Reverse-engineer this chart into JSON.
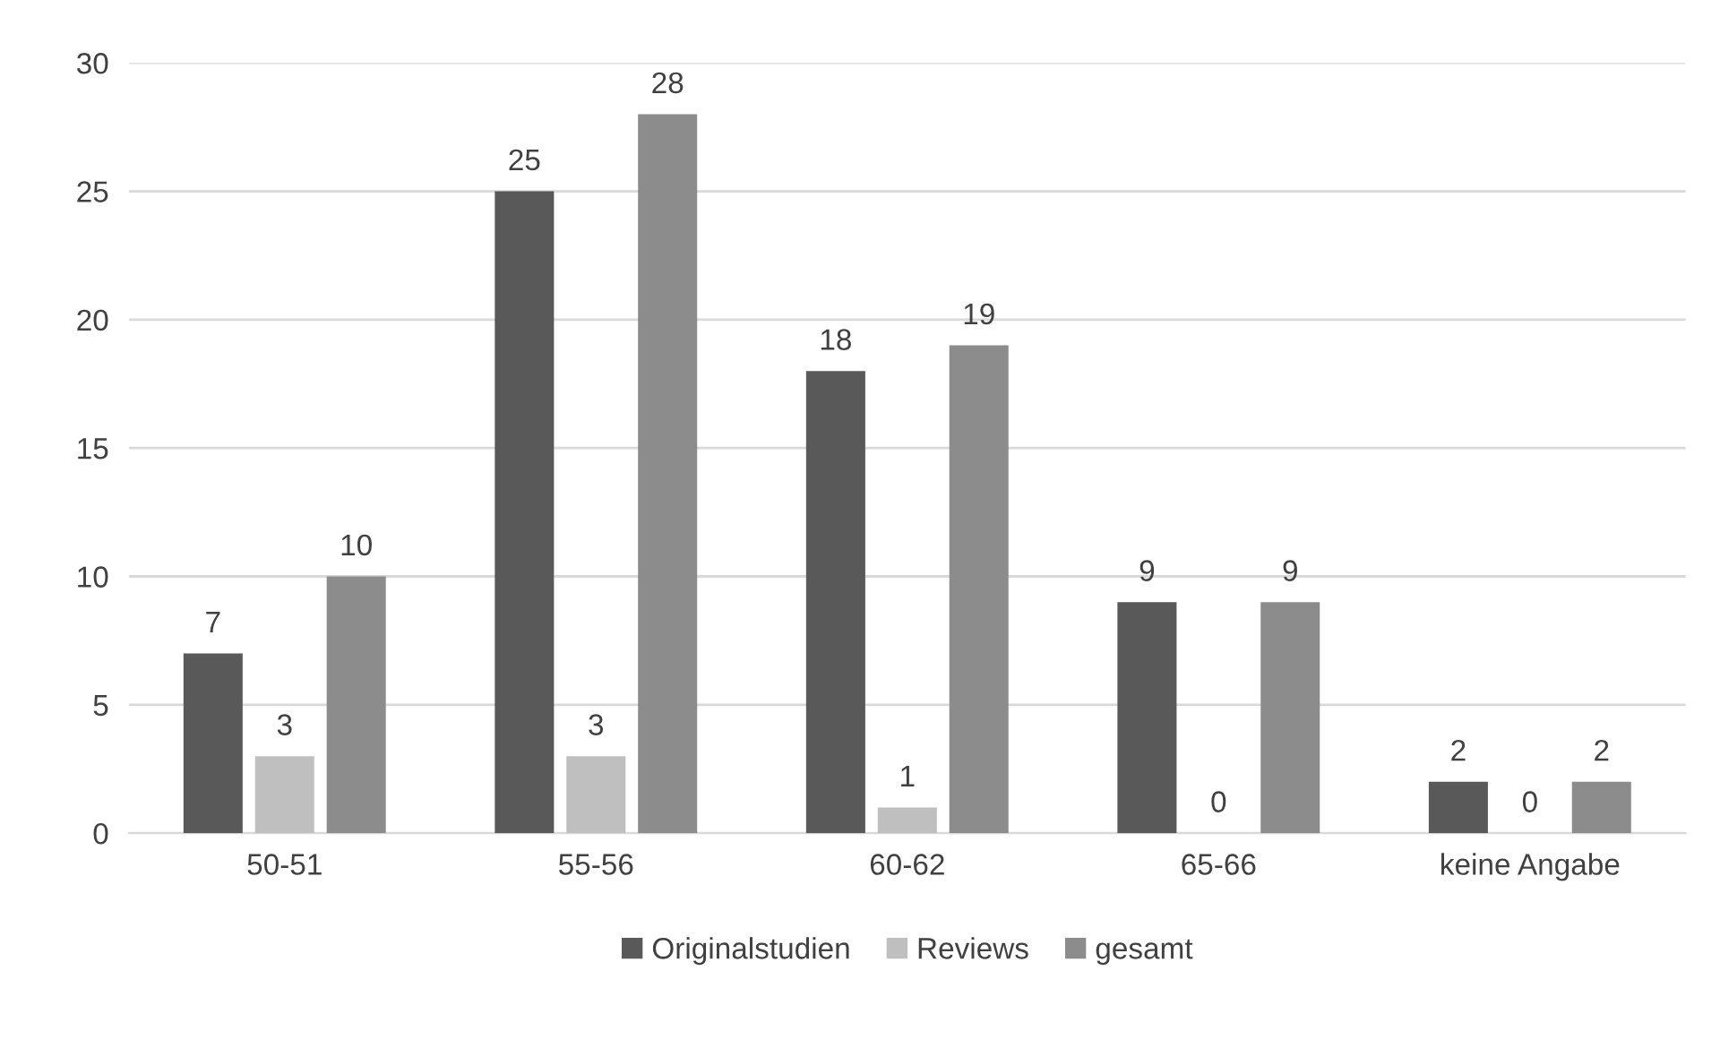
{
  "chart_data": {
    "type": "bar",
    "categories": [
      "50-51",
      "55-56",
      "60-62",
      "65-66",
      "keine Angabe"
    ],
    "series": [
      {
        "name": "Originalstudien",
        "color": "#595959",
        "values": [
          7,
          25,
          18,
          9,
          2
        ]
      },
      {
        "name": "Reviews",
        "color": "#bfbfbf",
        "values": [
          3,
          3,
          1,
          0,
          0
        ]
      },
      {
        "name": "gesamt",
        "color": "#8c8c8c",
        "values": [
          10,
          28,
          19,
          9,
          2
        ]
      }
    ],
    "ylim": [
      0,
      30
    ],
    "yticks": [
      0,
      5,
      10,
      15,
      20,
      25,
      30
    ],
    "grid": "y",
    "legend": "bottom",
    "data_labels": true
  }
}
